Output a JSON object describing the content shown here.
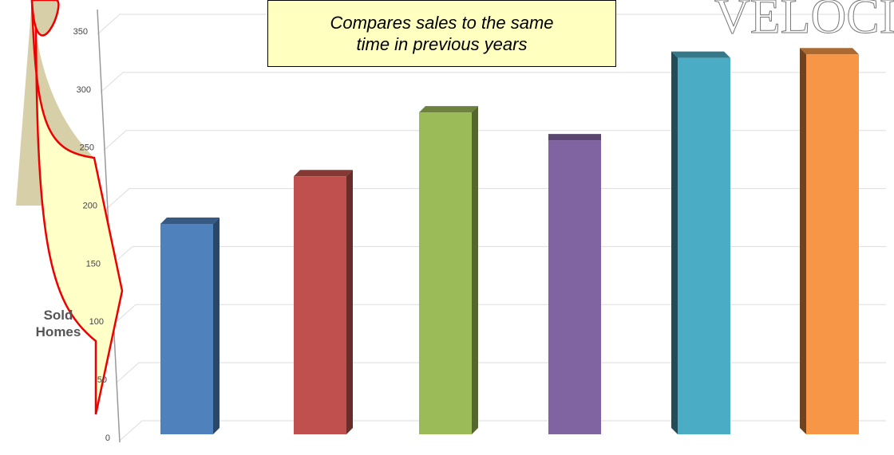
{
  "chart_data": {
    "type": "bar3d",
    "annotation": [
      "Compares sales to the same",
      "time in previous years"
    ],
    "y_label": [
      "Sold",
      "Homes"
    ],
    "watermark": "VELOCI",
    "categories": [
      null,
      null,
      null,
      null,
      null,
      null
    ],
    "series": [
      {
        "values": [
          175,
          216,
          271,
          247,
          318,
          321
        ],
        "colors": [
          "#4f81bd",
          "#c0504d",
          "#9bbb59",
          "#8064a2",
          "#4bacc6",
          "#f79646"
        ]
      }
    ],
    "ylim": [
      0,
      350
    ],
    "yticks": [
      0,
      50,
      100,
      150,
      200,
      250,
      300,
      350
    ],
    "grid": true
  }
}
